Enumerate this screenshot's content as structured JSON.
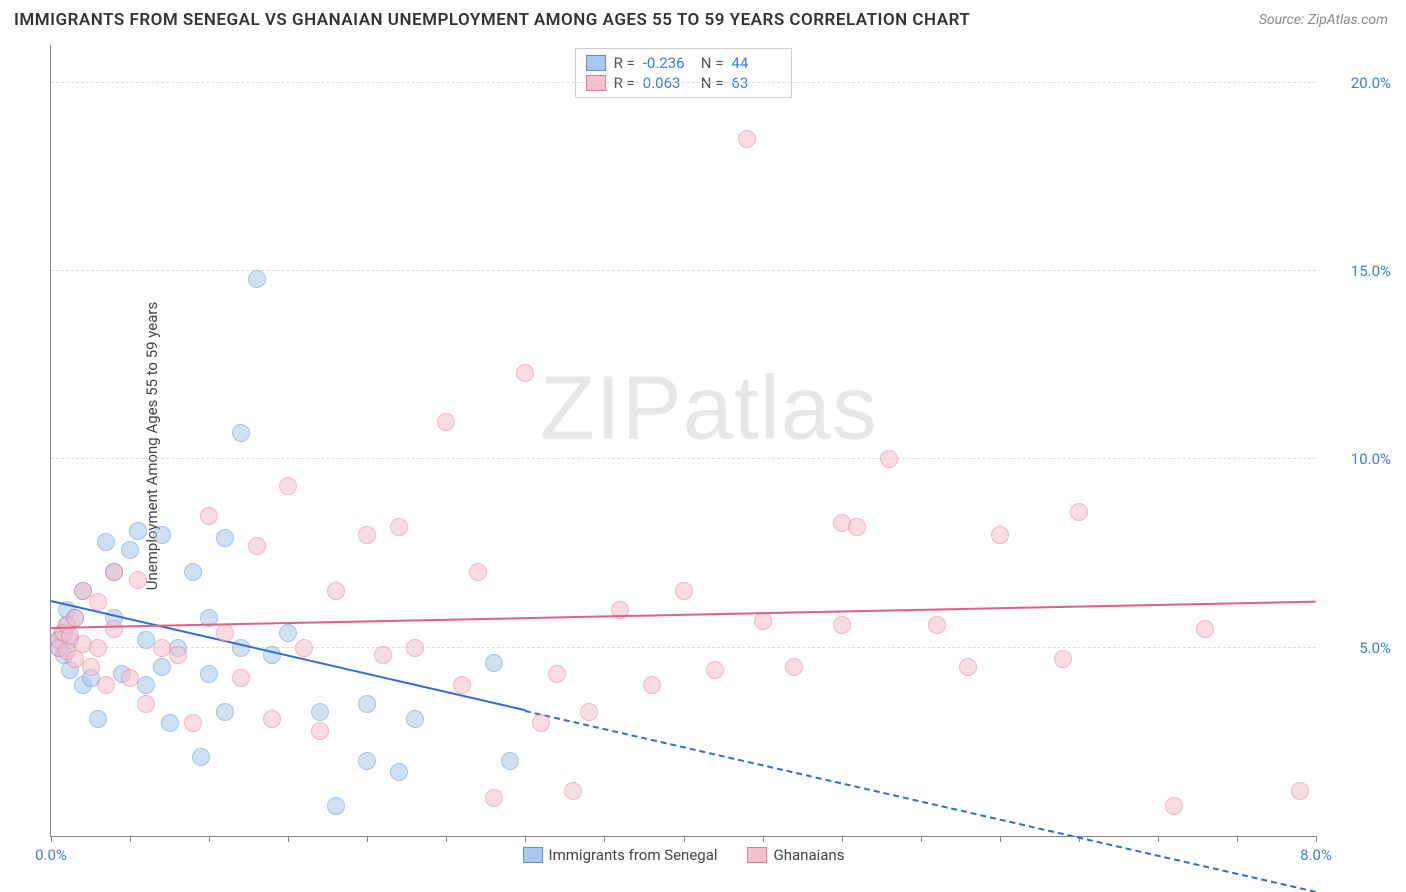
{
  "title": "IMMIGRANTS FROM SENEGAL VS GHANAIAN UNEMPLOYMENT AMONG AGES 55 TO 59 YEARS CORRELATION CHART",
  "source": "Source: ZipAtlas.com",
  "ylabel": "Unemployment Among Ages 55 to 59 years",
  "watermark_a": "ZIP",
  "watermark_b": "atlas",
  "chart": {
    "type": "scatter",
    "xlim": [
      0,
      8
    ],
    "ylim": [
      0,
      21
    ],
    "xticks": [
      {
        "v": 0,
        "label": "0.0%"
      },
      {
        "v": 8,
        "label": "8.0%"
      }
    ],
    "yticks": [
      {
        "v": 5,
        "label": "5.0%"
      },
      {
        "v": 10,
        "label": "10.0%"
      },
      {
        "v": 15,
        "label": "15.0%"
      },
      {
        "v": 20,
        "label": "20.0%"
      }
    ],
    "grid_color": "#dddddd",
    "axis_color": "#888888",
    "background_color": "#ffffff",
    "point_radius": 9,
    "point_opacity": 0.55,
    "series": [
      {
        "name": "Immigrants from Senegal",
        "fill": "#a9c8ec",
        "stroke": "#5b93d6",
        "trend_color": "#2e6fd0",
        "R": "-0.236",
        "N": "44",
        "trend": {
          "x1": 0,
          "y1": 6.2,
          "x2": 3.0,
          "y2": 3.3,
          "x2_ext": 8.0,
          "y2_ext": -1.5
        },
        "points": [
          [
            0.05,
            5.0
          ],
          [
            0.05,
            5.2
          ],
          [
            0.07,
            5.4
          ],
          [
            0.08,
            4.8
          ],
          [
            0.1,
            5.6
          ],
          [
            0.1,
            6.0
          ],
          [
            0.12,
            5.2
          ],
          [
            0.12,
            4.4
          ],
          [
            0.15,
            5.8
          ],
          [
            0.2,
            4.0
          ],
          [
            0.2,
            6.5
          ],
          [
            0.25,
            4.2
          ],
          [
            0.3,
            3.1
          ],
          [
            0.35,
            7.8
          ],
          [
            0.4,
            7.0
          ],
          [
            0.4,
            5.8
          ],
          [
            0.45,
            4.3
          ],
          [
            0.5,
            7.6
          ],
          [
            0.55,
            8.1
          ],
          [
            0.6,
            5.2
          ],
          [
            0.6,
            4.0
          ],
          [
            0.7,
            4.5
          ],
          [
            0.7,
            8.0
          ],
          [
            0.75,
            3.0
          ],
          [
            0.8,
            5.0
          ],
          [
            0.9,
            7.0
          ],
          [
            0.95,
            2.1
          ],
          [
            1.0,
            4.3
          ],
          [
            1.0,
            5.8
          ],
          [
            1.1,
            7.9
          ],
          [
            1.1,
            3.3
          ],
          [
            1.2,
            10.7
          ],
          [
            1.2,
            5.0
          ],
          [
            1.3,
            14.8
          ],
          [
            1.4,
            4.8
          ],
          [
            1.5,
            5.4
          ],
          [
            1.7,
            3.3
          ],
          [
            1.8,
            0.8
          ],
          [
            2.0,
            2.0
          ],
          [
            2.0,
            3.5
          ],
          [
            2.2,
            1.7
          ],
          [
            2.3,
            3.1
          ],
          [
            2.8,
            4.6
          ],
          [
            2.9,
            2.0
          ]
        ]
      },
      {
        "name": "Ghanaians",
        "fill": "#f3c0cc",
        "stroke": "#e77b97",
        "trend_color": "#e26088",
        "R": "0.063",
        "N": "63",
        "trend": {
          "x1": 0,
          "y1": 5.5,
          "x2": 8.0,
          "y2": 6.2
        },
        "points": [
          [
            0.05,
            5.2
          ],
          [
            0.05,
            5.0
          ],
          [
            0.08,
            5.4
          ],
          [
            0.1,
            4.9
          ],
          [
            0.1,
            5.6
          ],
          [
            0.12,
            5.3
          ],
          [
            0.15,
            4.7
          ],
          [
            0.15,
            5.8
          ],
          [
            0.2,
            5.1
          ],
          [
            0.2,
            6.5
          ],
          [
            0.25,
            4.5
          ],
          [
            0.3,
            5.0
          ],
          [
            0.3,
            6.2
          ],
          [
            0.35,
            4.0
          ],
          [
            0.4,
            5.5
          ],
          [
            0.4,
            7.0
          ],
          [
            0.5,
            4.2
          ],
          [
            0.55,
            6.8
          ],
          [
            0.6,
            3.5
          ],
          [
            0.7,
            5.0
          ],
          [
            0.8,
            4.8
          ],
          [
            0.9,
            3.0
          ],
          [
            1.0,
            8.5
          ],
          [
            1.1,
            5.4
          ],
          [
            1.2,
            4.2
          ],
          [
            1.3,
            7.7
          ],
          [
            1.4,
            3.1
          ],
          [
            1.5,
            9.3
          ],
          [
            1.6,
            5.0
          ],
          [
            1.7,
            2.8
          ],
          [
            1.8,
            6.5
          ],
          [
            2.0,
            8.0
          ],
          [
            2.1,
            4.8
          ],
          [
            2.2,
            8.2
          ],
          [
            2.3,
            5.0
          ],
          [
            2.5,
            11.0
          ],
          [
            2.6,
            4.0
          ],
          [
            2.7,
            7.0
          ],
          [
            2.8,
            1.0
          ],
          [
            3.0,
            12.3
          ],
          [
            3.1,
            3.0
          ],
          [
            3.2,
            4.3
          ],
          [
            3.3,
            1.2
          ],
          [
            3.4,
            3.3
          ],
          [
            3.6,
            6.0
          ],
          [
            3.8,
            4.0
          ],
          [
            4.0,
            6.5
          ],
          [
            4.2,
            4.4
          ],
          [
            4.4,
            18.5
          ],
          [
            4.5,
            5.7
          ],
          [
            4.7,
            4.5
          ],
          [
            5.0,
            8.3
          ],
          [
            5.0,
            5.6
          ],
          [
            5.1,
            8.2
          ],
          [
            5.3,
            10.0
          ],
          [
            5.6,
            5.6
          ],
          [
            5.8,
            4.5
          ],
          [
            6.0,
            8.0
          ],
          [
            6.4,
            4.7
          ],
          [
            6.5,
            8.6
          ],
          [
            7.1,
            0.8
          ],
          [
            7.3,
            5.5
          ],
          [
            7.9,
            1.2
          ]
        ]
      }
    ]
  },
  "legend": {
    "series1_label": "Immigrants from Senegal",
    "series2_label": "Ghanaians",
    "R_label": "R =",
    "N_label": "N ="
  }
}
